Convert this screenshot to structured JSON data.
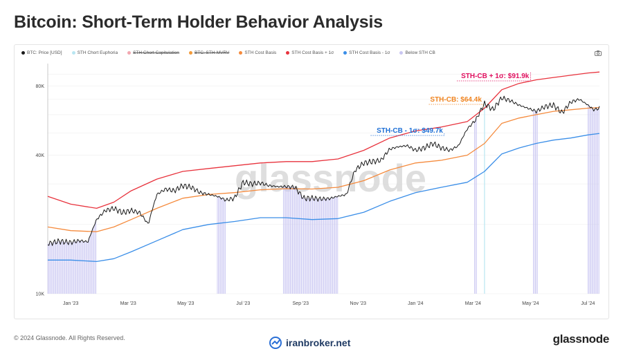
{
  "page": {
    "title": "Bitcoin: Short-Term Holder Behavior Analysis",
    "footer_copyright": "© 2024 Glassnode. All Rights Reserved.",
    "footer_site": "iranbroker.net",
    "footer_brand": "glassnode",
    "watermark": "glassnode"
  },
  "legend": [
    {
      "label": "BTC: Price [USD]",
      "color": "#1a1a1a",
      "strike": false
    },
    {
      "label": "STH Chort Euphoria",
      "color": "#b9e6f2",
      "strike": false
    },
    {
      "label": "STH Chort Capitulation",
      "color": "#f2a7b0",
      "strike": true
    },
    {
      "label": "BTC: STH-MVRV",
      "color": "#f29a3a",
      "strike": true
    },
    {
      "label": "STH Cost Basis",
      "color": "#f58a3c",
      "strike": false
    },
    {
      "label": "STH Cost Basis + 1σ",
      "color": "#e8323c",
      "strike": false
    },
    {
      "label": "STH Cost Basis - 1σ",
      "color": "#3a8ee8",
      "strike": false
    },
    {
      "label": "Below STH CB",
      "color": "#c9c6f2",
      "strike": false
    }
  ],
  "chart_data": {
    "type": "line",
    "title": "Bitcoin: Short-Term Holder Behavior Analysis",
    "y_scale": "log",
    "ylim": [
      10000,
      100000
    ],
    "y_ticks": [
      {
        "value": 10000,
        "label": "10K"
      },
      {
        "value": 40000,
        "label": "40K"
      },
      {
        "value": 80000,
        "label": "80K"
      }
    ],
    "x_ticks": [
      "Jan '23",
      "Mar '23",
      "May '23",
      "Jul '23",
      "Sep '23",
      "Nov '23",
      "Jan '24",
      "Mar '24",
      "May '24",
      "Jul '24"
    ],
    "x_tick_months": [
      1,
      3,
      5,
      7,
      9,
      11,
      13,
      15,
      17,
      19
    ],
    "xlim_months": [
      0.2,
      19.4
    ],
    "grid": true,
    "series": [
      {
        "name": "BTC: Price [USD]",
        "color": "#1a1a1a",
        "x": [
          0.2,
          0.6,
          1.0,
          1.3,
          1.6,
          1.9,
          2.2,
          2.5,
          2.8,
          3.1,
          3.4,
          3.7,
          4.0,
          4.3,
          4.6,
          4.9,
          5.2,
          5.5,
          5.8,
          6.1,
          6.4,
          6.7,
          7.0,
          7.3,
          7.6,
          7.9,
          8.2,
          8.5,
          8.8,
          9.1,
          9.4,
          9.7,
          10.0,
          10.3,
          10.6,
          10.9,
          11.2,
          11.5,
          11.8,
          12.1,
          12.4,
          12.7,
          13.0,
          13.3,
          13.6,
          13.9,
          14.2,
          14.5,
          14.8,
          15.1,
          15.4,
          15.7,
          16.0,
          16.3,
          16.6,
          16.9,
          17.2,
          17.5,
          17.8,
          18.1,
          18.4,
          18.7,
          19.0,
          19.2,
          19.4
        ],
        "values": [
          16500,
          16900,
          16700,
          17000,
          16800,
          21000,
          23000,
          23500,
          22500,
          23000,
          22500,
          20000,
          27000,
          28500,
          28000,
          29500,
          29000,
          27500,
          27000,
          26500,
          25500,
          26000,
          30500,
          30000,
          30300,
          29500,
          29200,
          29200,
          29000,
          26000,
          26000,
          25800,
          25900,
          26500,
          27000,
          34500,
          37000,
          37500,
          38000,
          42500,
          43500,
          44000,
          42000,
          43000,
          45000,
          43000,
          42000,
          44000,
          52000,
          57000,
          67000,
          63000,
          71000,
          69000,
          66000,
          64000,
          62000,
          65000,
          66000,
          61000,
          68000,
          70000,
          66000,
          63000,
          64000
        ]
      },
      {
        "name": "STH Cost Basis",
        "color": "#f58a3c",
        "x": [
          0.2,
          1.0,
          1.9,
          2.5,
          3.1,
          4.0,
          4.9,
          5.8,
          6.7,
          7.6,
          8.5,
          9.4,
          10.3,
          11.2,
          12.1,
          13.0,
          13.9,
          14.8,
          15.4,
          16.0,
          16.6,
          17.2,
          17.8,
          18.4,
          19.0,
          19.4
        ],
        "values": [
          19500,
          18800,
          18600,
          19500,
          21000,
          23500,
          26000,
          27000,
          27500,
          28300,
          28600,
          28500,
          29000,
          31000,
          34500,
          37000,
          38000,
          40000,
          45000,
          55000,
          58000,
          60000,
          62000,
          63000,
          64000,
          64400
        ]
      },
      {
        "name": "STH Cost Basis + 1σ",
        "color": "#e8323c",
        "x": [
          0.2,
          1.0,
          1.9,
          2.5,
          3.1,
          4.0,
          4.9,
          5.8,
          6.7,
          7.6,
          8.5,
          9.4,
          10.3,
          11.2,
          12.1,
          13.0,
          13.9,
          14.8,
          15.4,
          16.0,
          16.6,
          17.2,
          17.8,
          18.4,
          19.0,
          19.4
        ],
        "values": [
          26500,
          24500,
          23500,
          25000,
          28000,
          31500,
          34000,
          35000,
          36000,
          37000,
          37500,
          37500,
          38500,
          42000,
          47500,
          51000,
          53000,
          56000,
          64000,
          77000,
          82000,
          85000,
          87000,
          89000,
          91000,
          91900
        ]
      },
      {
        "name": "STH Cost Basis - 1σ",
        "color": "#3a8ee8",
        "x": [
          0.2,
          1.0,
          1.9,
          2.5,
          3.1,
          4.0,
          4.9,
          5.8,
          6.7,
          7.6,
          8.5,
          9.4,
          10.3,
          11.2,
          12.1,
          13.0,
          13.9,
          14.8,
          15.4,
          16.0,
          16.6,
          17.2,
          17.8,
          18.4,
          19.0,
          19.4
        ],
        "values": [
          14000,
          14000,
          13800,
          14200,
          15200,
          17000,
          19000,
          20000,
          20600,
          21400,
          21400,
          21000,
          21200,
          22600,
          25200,
          27500,
          29000,
          30500,
          34000,
          40500,
          43000,
          45000,
          46500,
          47500,
          49000,
          49700
        ]
      }
    ],
    "below_sth_cb_ranges_months": [
      [
        0.2,
        1.9
      ],
      [
        6.1,
        6.4
      ],
      [
        8.4,
        10.3
      ],
      [
        15.05,
        15.15
      ],
      [
        17.1,
        17.25
      ],
      [
        19.0,
        19.4
      ]
    ],
    "euphoria_ranges_months": [
      [
        15.35,
        15.45
      ]
    ],
    "annotations": [
      {
        "label": "STH-CB + 1σ: $91.9k",
        "color": "#e0105f",
        "at_month": 17.0,
        "value": 91900
      },
      {
        "label": "STH-CB: $64.4k",
        "color": "#f08420",
        "at_month": 15.35,
        "value": 64400
      },
      {
        "label": "STH-CB - 1σ: $49.7k",
        "color": "#1d6fd6",
        "at_month": 14.0,
        "value": 49700
      }
    ]
  }
}
